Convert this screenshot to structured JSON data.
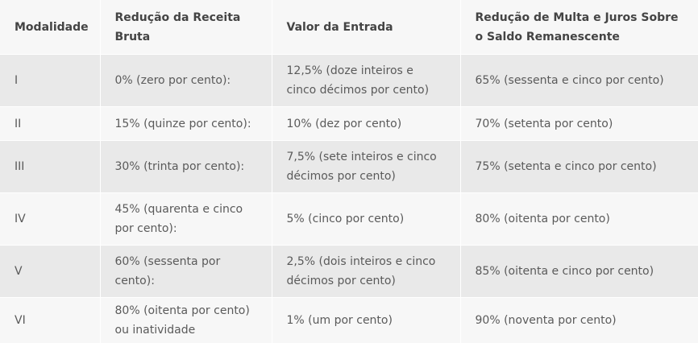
{
  "table": {
    "headers": [
      "Modalidade",
      "Redução da Receita Bruta",
      "Valor da Entrada",
      "Redução de Multa e Juros Sobre o Saldo Remanescente"
    ],
    "rows": [
      [
        "I",
        "0% (zero por cento):",
        "12,5% (doze inteiros e cinco décimos por cento)",
        "65% (sessenta e cinco por cento)"
      ],
      [
        "II",
        "15% (quinze por cento):",
        "10% (dez por cento)",
        "70% (setenta por cento)"
      ],
      [
        "III",
        "30% (trinta por cento):",
        "7,5% (sete inteiros e cinco décimos por cento)",
        "75% (setenta e cinco por cento)"
      ],
      [
        "IV",
        "45% (quarenta e cinco por cento):",
        "5% (cinco por cento)",
        "80% (oitenta por cento)"
      ],
      [
        "V",
        "60% (sessenta por cento):",
        "2,5% (dois inteiros e cinco décimos por cento)",
        "85% (oitenta e cinco por cento)"
      ],
      [
        "VI",
        "80% (oitenta por cento) ou inatividade",
        "1% (um por cento)",
        "90% (noventa por cento)"
      ]
    ]
  }
}
